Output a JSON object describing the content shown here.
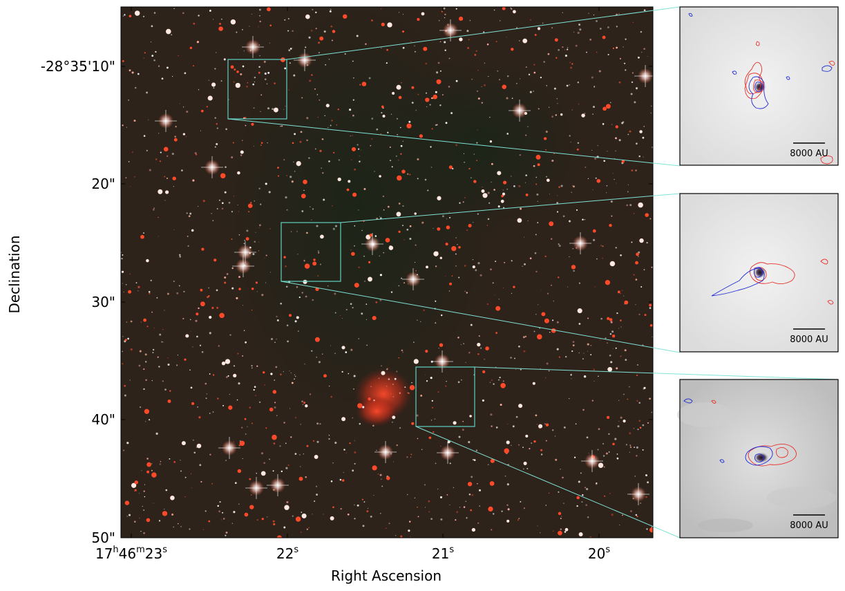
{
  "axes": {
    "xlabel": "Right Ascension",
    "ylabel": "Declination",
    "x_ticks": [
      {
        "h": "17",
        "m": "46",
        "s": "23"
      },
      {
        "s": "22"
      },
      {
        "s": "21"
      },
      {
        "s": "20"
      }
    ],
    "y_ticks": [
      "-28°35'10\"",
      "20\"",
      "30\"",
      "40\"",
      "50\""
    ]
  },
  "colors": {
    "box": "#5fd3c3",
    "contour_red": "#e8302a",
    "contour_blue": "#1f2bd6",
    "background": "#2a1f18"
  },
  "insets": [
    {
      "scalebar_label": "8000 AU"
    },
    {
      "scalebar_label": "8000 AU"
    },
    {
      "scalebar_label": "8000 AU"
    }
  ]
}
